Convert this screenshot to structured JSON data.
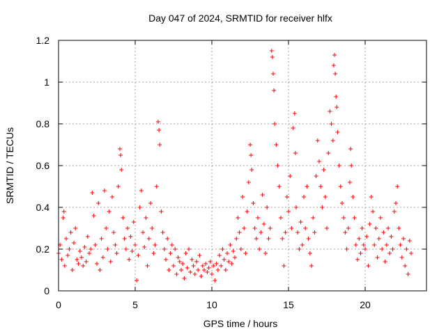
{
  "chart_data": {
    "type": "scatter",
    "title": "Day 047 of 2024, SRMTID for receiver hlfx",
    "xlabel": "GPS time / hours",
    "ylabel": "SRMTID / TECUs",
    "xlim": [
      0,
      24
    ],
    "ylim": [
      0,
      1.2
    ],
    "x_ticks": [
      0,
      5,
      10,
      15,
      20
    ],
    "x_tick_labels": [
      "0",
      "5",
      "10",
      "15",
      "20"
    ],
    "y_ticks": [
      0,
      0.2,
      0.4,
      0.6,
      0.8,
      1,
      1.2
    ],
    "y_tick_labels": [
      "0",
      "0.2",
      "0.4",
      "0.6",
      "0.8",
      "1",
      "1.2"
    ],
    "grid": true,
    "marker": "+",
    "series": [
      {
        "name": "SRMTID",
        "color": "#ff0000",
        "points": [
          [
            0.0,
            0.18
          ],
          [
            0.1,
            0.22
          ],
          [
            0.2,
            0.15
          ],
          [
            0.3,
            0.35
          ],
          [
            0.35,
            0.38
          ],
          [
            0.4,
            0.12
          ],
          [
            0.5,
            0.25
          ],
          [
            0.6,
            0.17
          ],
          [
            0.7,
            0.2
          ],
          [
            0.8,
            0.28
          ],
          [
            0.9,
            0.1
          ],
          [
            1.0,
            0.23
          ],
          [
            1.1,
            0.3
          ],
          [
            1.2,
            0.15
          ],
          [
            1.3,
            0.13
          ],
          [
            1.4,
            0.19
          ],
          [
            1.5,
            0.16
          ],
          [
            1.6,
            0.12
          ],
          [
            1.7,
            0.21
          ],
          [
            1.8,
            0.14
          ],
          [
            1.9,
            0.26
          ],
          [
            2.0,
            0.18
          ],
          [
            2.1,
            0.2
          ],
          [
            2.2,
            0.47
          ],
          [
            2.3,
            0.36
          ],
          [
            2.4,
            0.22
          ],
          [
            2.5,
            0.13
          ],
          [
            2.6,
            0.42
          ],
          [
            2.7,
            0.1
          ],
          [
            2.8,
            0.25
          ],
          [
            2.9,
            0.16
          ],
          [
            3.0,
            0.48
          ],
          [
            3.1,
            0.3
          ],
          [
            3.2,
            0.2
          ],
          [
            3.3,
            0.38
          ],
          [
            3.4,
            0.14
          ],
          [
            3.5,
            0.45
          ],
          [
            3.6,
            0.28
          ],
          [
            3.7,
            0.22
          ],
          [
            3.8,
            0.18
          ],
          [
            3.9,
            0.5
          ],
          [
            4.0,
            0.68
          ],
          [
            4.05,
            0.65
          ],
          [
            4.1,
            0.58
          ],
          [
            4.2,
            0.35
          ],
          [
            4.3,
            0.25
          ],
          [
            4.4,
            0.2
          ],
          [
            4.5,
            0.3
          ],
          [
            4.6,
            0.15
          ],
          [
            4.7,
            0.26
          ],
          [
            4.8,
            0.19
          ],
          [
            4.9,
            0.33
          ],
          [
            5.0,
            0.22
          ],
          [
            5.1,
            0.05
          ],
          [
            5.2,
            0.17
          ],
          [
            5.3,
            0.4
          ],
          [
            5.4,
            0.48
          ],
          [
            5.5,
            0.28
          ],
          [
            5.6,
            0.21
          ],
          [
            5.7,
            0.35
          ],
          [
            5.8,
            0.12
          ],
          [
            5.9,
            0.25
          ],
          [
            6.0,
            0.42
          ],
          [
            6.1,
            0.3
          ],
          [
            6.2,
            0.18
          ],
          [
            6.3,
            0.22
          ],
          [
            6.4,
            0.5
          ],
          [
            6.5,
            0.81
          ],
          [
            6.55,
            0.77
          ],
          [
            6.6,
            0.7
          ],
          [
            6.7,
            0.38
          ],
          [
            6.8,
            0.28
          ],
          [
            6.9,
            0.2
          ],
          [
            7.0,
            0.15
          ],
          [
            7.1,
            0.25
          ],
          [
            7.2,
            0.1
          ],
          [
            7.3,
            0.18
          ],
          [
            7.4,
            0.22
          ],
          [
            7.5,
            0.12
          ],
          [
            7.6,
            0.2
          ],
          [
            7.7,
            0.08
          ],
          [
            7.8,
            0.16
          ],
          [
            7.9,
            0.14
          ],
          [
            8.0,
            0.1
          ],
          [
            8.1,
            0.13
          ],
          [
            8.2,
            0.06
          ],
          [
            8.3,
            0.18
          ],
          [
            8.4,
            0.11
          ],
          [
            8.5,
            0.2
          ],
          [
            8.6,
            0.09
          ],
          [
            8.7,
            0.15
          ],
          [
            8.8,
            0.12
          ],
          [
            8.9,
            0.08
          ],
          [
            9.0,
            0.14
          ],
          [
            9.1,
            0.1
          ],
          [
            9.2,
            0.17
          ],
          [
            9.3,
            0.07
          ],
          [
            9.4,
            0.12
          ],
          [
            9.5,
            0.1
          ],
          [
            9.6,
            0.13
          ],
          [
            9.7,
            0.09
          ],
          [
            9.8,
            0.11
          ],
          [
            9.9,
            0.14
          ],
          [
            10.0,
            0.08
          ],
          [
            10.1,
            0.12
          ],
          [
            10.2,
            0.05
          ],
          [
            10.3,
            0.13
          ],
          [
            10.4,
            0.1
          ],
          [
            10.5,
            0.17
          ],
          [
            10.6,
            0.12
          ],
          [
            10.7,
            0.2
          ],
          [
            10.8,
            0.15
          ],
          [
            10.9,
            0.1
          ],
          [
            11.0,
            0.18
          ],
          [
            11.1,
            0.14
          ],
          [
            11.2,
            0.22
          ],
          [
            11.3,
            0.13
          ],
          [
            11.4,
            0.19
          ],
          [
            11.5,
            0.16
          ],
          [
            11.6,
            0.25
          ],
          [
            11.7,
            0.35
          ],
          [
            11.8,
            0.28
          ],
          [
            11.9,
            0.2
          ],
          [
            12.0,
            0.45
          ],
          [
            12.1,
            0.3
          ],
          [
            12.2,
            0.18
          ],
          [
            12.3,
            0.38
          ],
          [
            12.4,
            0.52
          ],
          [
            12.5,
            0.7
          ],
          [
            12.55,
            0.65
          ],
          [
            12.6,
            0.58
          ],
          [
            12.7,
            0.42
          ],
          [
            12.8,
            0.3
          ],
          [
            12.9,
            0.25
          ],
          [
            13.0,
            0.35
          ],
          [
            13.1,
            0.2
          ],
          [
            13.2,
            0.28
          ],
          [
            13.3,
            0.46
          ],
          [
            13.4,
            0.32
          ],
          [
            13.5,
            0.18
          ],
          [
            13.6,
            0.4
          ],
          [
            13.7,
            0.25
          ],
          [
            13.8,
            0.3
          ],
          [
            13.9,
            1.15
          ],
          [
            13.95,
            1.12
          ],
          [
            14.0,
            1.04
          ],
          [
            14.05,
            0.96
          ],
          [
            14.1,
            0.8
          ],
          [
            14.2,
            0.7
          ],
          [
            14.3,
            0.6
          ],
          [
            14.4,
            0.5
          ],
          [
            14.5,
            0.35
          ],
          [
            14.6,
            0.25
          ],
          [
            14.7,
            0.12
          ],
          [
            14.8,
            0.28
          ],
          [
            14.9,
            0.45
          ],
          [
            15.0,
            0.38
          ],
          [
            15.1,
            0.55
          ],
          [
            15.2,
            0.3
          ],
          [
            15.3,
            0.78
          ],
          [
            15.4,
            0.85
          ],
          [
            15.45,
            0.66
          ],
          [
            15.5,
            0.4
          ],
          [
            15.6,
            0.28
          ],
          [
            15.7,
            0.2
          ],
          [
            15.8,
            0.33
          ],
          [
            15.9,
            0.22
          ],
          [
            16.0,
            0.45
          ],
          [
            16.1,
            0.3
          ],
          [
            16.2,
            0.5
          ],
          [
            16.3,
            0.25
          ],
          [
            16.4,
            0.18
          ],
          [
            16.5,
            0.12
          ],
          [
            16.6,
            0.35
          ],
          [
            16.7,
            0.28
          ],
          [
            16.8,
            0.55
          ],
          [
            16.9,
            0.72
          ],
          [
            17.0,
            0.62
          ],
          [
            17.1,
            0.5
          ],
          [
            17.2,
            0.4
          ],
          [
            17.3,
            0.58
          ],
          [
            17.4,
            0.45
          ],
          [
            17.5,
            0.3
          ],
          [
            17.6,
            0.66
          ],
          [
            17.7,
            0.86
          ],
          [
            17.8,
            0.8
          ],
          [
            17.9,
            0.72
          ],
          [
            17.95,
            1.08
          ],
          [
            18.0,
            1.13
          ],
          [
            18.05,
            1.04
          ],
          [
            18.1,
            0.93
          ],
          [
            18.15,
            0.88
          ],
          [
            18.2,
            0.76
          ],
          [
            18.3,
            0.6
          ],
          [
            18.4,
            0.5
          ],
          [
            18.5,
            0.42
          ],
          [
            18.6,
            0.35
          ],
          [
            18.7,
            0.28
          ],
          [
            18.8,
            0.2
          ],
          [
            18.9,
            0.3
          ],
          [
            19.0,
            0.52
          ],
          [
            19.05,
            0.68
          ],
          [
            19.1,
            0.6
          ],
          [
            19.2,
            0.45
          ],
          [
            19.3,
            0.35
          ],
          [
            19.4,
            0.22
          ],
          [
            19.5,
            0.15
          ],
          [
            19.6,
            0.25
          ],
          [
            19.7,
            0.18
          ],
          [
            19.8,
            0.3
          ],
          [
            19.9,
            0.22
          ],
          [
            20.0,
            0.2
          ],
          [
            20.1,
            0.26
          ],
          [
            20.2,
            0.12
          ],
          [
            20.3,
            0.32
          ],
          [
            20.4,
            0.45
          ],
          [
            20.5,
            0.38
          ],
          [
            20.6,
            0.22
          ],
          [
            20.7,
            0.3
          ],
          [
            20.8,
            0.16
          ],
          [
            20.9,
            0.25
          ],
          [
            21.0,
            0.35
          ],
          [
            21.1,
            0.2
          ],
          [
            21.2,
            0.28
          ],
          [
            21.3,
            0.14
          ],
          [
            21.4,
            0.22
          ],
          [
            21.5,
            0.3
          ],
          [
            21.6,
            0.18
          ],
          [
            21.7,
            0.26
          ],
          [
            21.8,
            0.2
          ],
          [
            21.9,
            0.38
          ],
          [
            22.0,
            0.42
          ],
          [
            22.1,
            0.5
          ],
          [
            22.2,
            0.3
          ],
          [
            22.3,
            0.22
          ],
          [
            22.4,
            0.16
          ],
          [
            22.5,
            0.25
          ],
          [
            22.6,
            0.12
          ],
          [
            22.7,
            0.2
          ],
          [
            22.8,
            0.08
          ],
          [
            22.9,
            0.24
          ],
          [
            23.0,
            0.18
          ]
        ]
      }
    ]
  }
}
